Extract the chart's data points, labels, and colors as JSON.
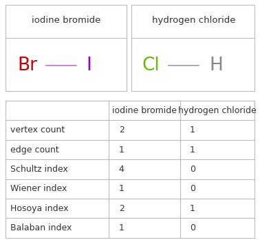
{
  "compounds": [
    "iodine bromide",
    "hydrogen chloride"
  ],
  "mol1_br_color": "#cc0000",
  "mol1_i_color": "#9400d3",
  "mol1_bond_color": "#cc88cc",
  "mol2_cl_color": "#66bb00",
  "mol2_h_color": "#888888",
  "mol2_bond_color": "#aaaaaa",
  "rows": [
    "vertex count",
    "edge count",
    "Schultz index",
    "Wiener index",
    "Hosoya index",
    "Balaban index"
  ],
  "col1_values": [
    "2",
    "1",
    "4",
    "1",
    "2",
    "1"
  ],
  "col2_values": [
    "1",
    "1",
    "0",
    "0",
    "1",
    "0"
  ],
  "table_line_color": "#bbbbbb",
  "text_color": "#333333",
  "background_color": "#ffffff"
}
